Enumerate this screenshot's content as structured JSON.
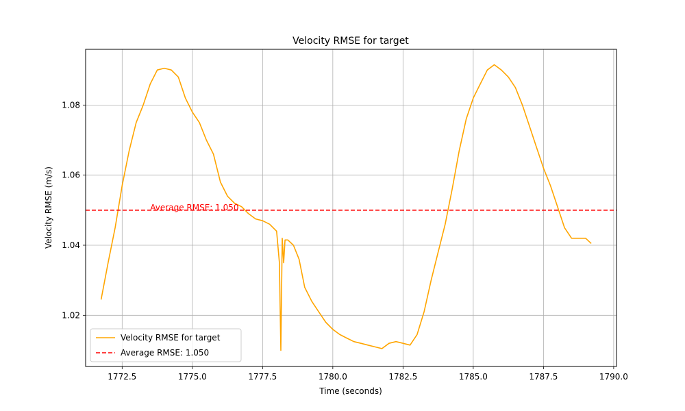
{
  "chart_data": {
    "type": "line",
    "title": "Velocity RMSE for target",
    "xlabel": "Time (seconds)",
    "ylabel": "Velocity RMSE (m/s)",
    "xlim": [
      1771.2,
      1790.1
    ],
    "ylim": [
      1.0054,
      1.0959
    ],
    "x_ticks": [
      1772.5,
      1775.0,
      1777.5,
      1780.0,
      1782.5,
      1785.0,
      1787.5,
      1790.0
    ],
    "x_tick_labels": [
      "1772.5",
      "1775.0",
      "1777.5",
      "1780.0",
      "1782.5",
      "1785.0",
      "1787.5",
      "1790.0"
    ],
    "y_ticks": [
      1.02,
      1.04,
      1.06,
      1.08
    ],
    "y_tick_labels": [
      "1.02",
      "1.04",
      "1.06",
      "1.08"
    ],
    "grid": true,
    "legend_position": "lower-left",
    "series": [
      {
        "name": "Velocity RMSE for target",
        "color": "#ffa500",
        "style": "solid",
        "x": [
          1771.75,
          1772.0,
          1772.25,
          1772.5,
          1772.75,
          1773.0,
          1773.25,
          1773.5,
          1773.75,
          1774.0,
          1774.25,
          1774.5,
          1774.75,
          1775.0,
          1775.25,
          1775.5,
          1775.75,
          1776.0,
          1776.25,
          1776.5,
          1776.75,
          1777.0,
          1777.25,
          1777.5,
          1777.75,
          1778.0,
          1778.1,
          1778.15,
          1778.2,
          1778.25,
          1778.3,
          1778.4,
          1778.6,
          1778.8,
          1779.0,
          1779.25,
          1779.5,
          1779.75,
          1780.0,
          1780.25,
          1780.5,
          1780.75,
          1781.0,
          1781.25,
          1781.5,
          1781.75,
          1782.0,
          1782.25,
          1782.5,
          1782.75,
          1783.0,
          1783.25,
          1783.5,
          1783.75,
          1784.0,
          1784.25,
          1784.5,
          1784.75,
          1785.0,
          1785.25,
          1785.5,
          1785.75,
          1786.0,
          1786.25,
          1786.5,
          1786.75,
          1787.0,
          1787.25,
          1787.5,
          1787.75,
          1788.0,
          1788.25,
          1788.5,
          1788.75,
          1789.0,
          1789.2
        ],
        "y": [
          1.0245,
          1.035,
          1.045,
          1.057,
          1.067,
          1.075,
          1.08,
          1.086,
          1.09,
          1.0905,
          1.09,
          1.088,
          1.082,
          1.078,
          1.075,
          1.07,
          1.066,
          1.058,
          1.054,
          1.052,
          1.051,
          1.049,
          1.0475,
          1.047,
          1.046,
          1.044,
          1.035,
          1.01,
          1.042,
          1.035,
          1.0415,
          1.0415,
          1.04,
          1.036,
          1.028,
          1.024,
          1.021,
          1.018,
          1.016,
          1.0145,
          1.0135,
          1.0125,
          1.012,
          1.0115,
          1.011,
          1.0105,
          1.012,
          1.0125,
          1.012,
          1.0115,
          1.0145,
          1.021,
          1.03,
          1.038,
          1.046,
          1.056,
          1.067,
          1.076,
          1.082,
          1.086,
          1.09,
          1.0915,
          1.09,
          1.088,
          1.085,
          1.08,
          1.074,
          1.068,
          1.062,
          1.057,
          1.051,
          1.045,
          1.042,
          1.042,
          1.042,
          1.0405
        ]
      },
      {
        "name": "Average RMSE: 1.050",
        "color": "#ff0000",
        "style": "dashed",
        "y_constant": 1.05
      }
    ],
    "annotations": [
      {
        "text": "Average RMSE: 1.050",
        "x": 1773.5,
        "y": 1.05,
        "color": "#ff0000"
      }
    ]
  }
}
